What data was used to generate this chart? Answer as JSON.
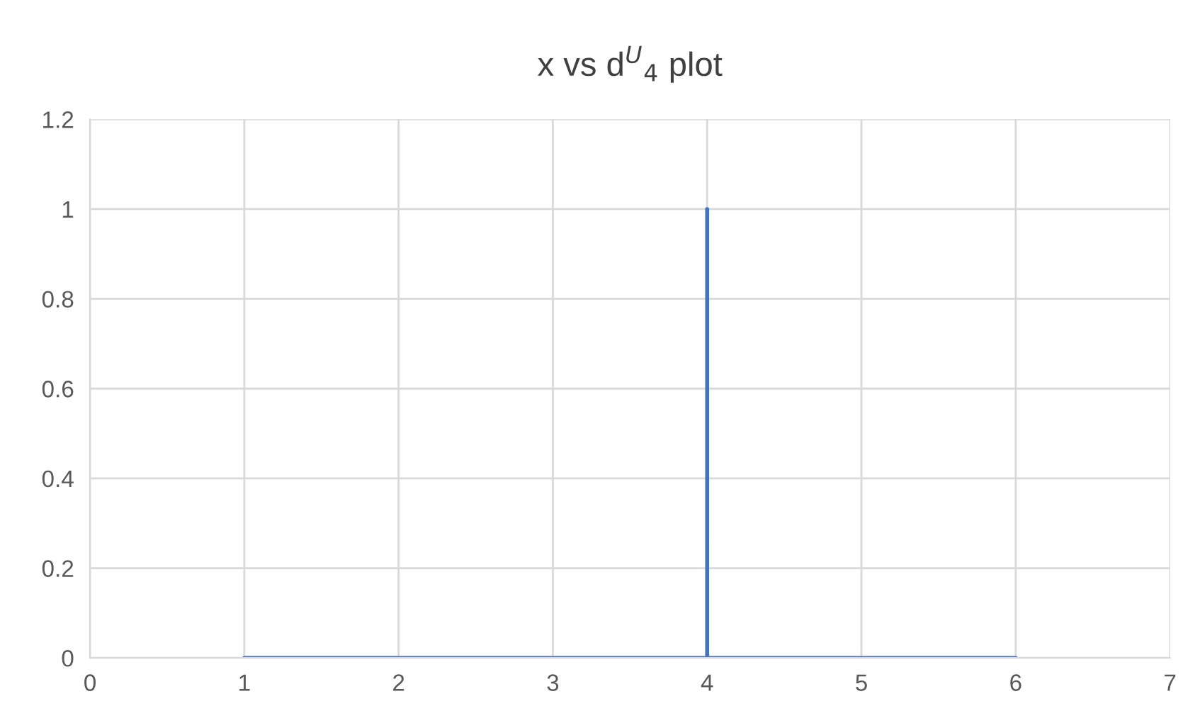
{
  "chart_data": {
    "type": "line",
    "title": "x vs d$^{U}$$_{4}$ plot",
    "x": [
      1,
      2,
      3,
      4,
      4,
      4,
      5,
      6
    ],
    "series": [
      {
        "color": "#4472c4",
        "values": [
          0,
          0,
          0,
          0,
          1,
          0,
          0,
          0
        ]
      }
    ],
    "xlim": [
      0,
      7
    ],
    "xticks": [
      0,
      1,
      2,
      3,
      4,
      5,
      6,
      7
    ],
    "ylim": [
      0,
      1.2
    ],
    "yticks": [
      0,
      0.2,
      0.4,
      0.6,
      0.8,
      1,
      1.2
    ],
    "grid": true,
    "legend": false,
    "marker": "none",
    "line_style": "solid"
  }
}
